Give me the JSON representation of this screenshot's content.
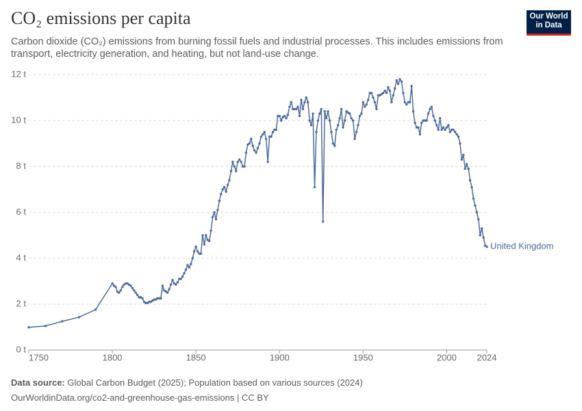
{
  "chart_data": {
    "type": "line",
    "title": "CO₂ emissions per capita",
    "subtitle": "Carbon dioxide (CO₂) emissions from burning fossil fuels and industrial processes. This includes emissions from transport, electricity generation, and heating, but not land-use change.",
    "logo": [
      "Our World",
      "in Data"
    ],
    "source_label": "Data source:",
    "source": "Global Carbon Budget (2025); Population based on various sources (2024)",
    "url_line": "OurWorldinData.org/co2-and-greenhouse-gas-emissions | CC BY",
    "xlim": [
      1750,
      2024
    ],
    "xticks": [
      1750,
      1800,
      1850,
      1900,
      1950,
      2000,
      2024
    ],
    "ylim": [
      0,
      12
    ],
    "yticks": [
      {
        "value": 0,
        "label": "0 t"
      },
      {
        "value": 2,
        "label": "2 t"
      },
      {
        "value": 4,
        "label": "4 t"
      },
      {
        "value": 6,
        "label": "6 t"
      },
      {
        "value": 8,
        "label": "8 t"
      },
      {
        "value": 10,
        "label": "10 t"
      },
      {
        "value": 12,
        "label": "12 t"
      }
    ],
    "grid": true,
    "x": [
      1750,
      1760,
      1770,
      1780,
      1790,
      1800,
      1801,
      1802,
      1803,
      1804,
      1805,
      1806,
      1807,
      1808,
      1809,
      1810,
      1811,
      1812,
      1813,
      1814,
      1815,
      1816,
      1817,
      1818,
      1819,
      1820,
      1821,
      1822,
      1823,
      1824,
      1825,
      1826,
      1827,
      1828,
      1829,
      1830,
      1831,
      1832,
      1833,
      1834,
      1835,
      1836,
      1837,
      1838,
      1839,
      1840,
      1841,
      1842,
      1843,
      1844,
      1845,
      1846,
      1847,
      1848,
      1849,
      1850,
      1851,
      1852,
      1853,
      1854,
      1855,
      1856,
      1857,
      1858,
      1859,
      1860,
      1861,
      1862,
      1863,
      1864,
      1865,
      1866,
      1867,
      1868,
      1869,
      1870,
      1871,
      1872,
      1873,
      1874,
      1875,
      1876,
      1877,
      1878,
      1879,
      1880,
      1881,
      1882,
      1883,
      1884,
      1885,
      1886,
      1887,
      1888,
      1889,
      1890,
      1891,
      1892,
      1893,
      1894,
      1895,
      1896,
      1897,
      1898,
      1899,
      1900,
      1901,
      1902,
      1903,
      1904,
      1905,
      1906,
      1907,
      1908,
      1909,
      1910,
      1911,
      1912,
      1913,
      1914,
      1915,
      1916,
      1917,
      1918,
      1919,
      1920,
      1921,
      1922,
      1923,
      1924,
      1925,
      1926,
      1927,
      1928,
      1929,
      1930,
      1931,
      1932,
      1933,
      1934,
      1935,
      1936,
      1937,
      1938,
      1939,
      1940,
      1941,
      1942,
      1943,
      1944,
      1945,
      1946,
      1947,
      1948,
      1949,
      1950,
      1951,
      1952,
      1953,
      1954,
      1955,
      1956,
      1957,
      1958,
      1959,
      1960,
      1961,
      1962,
      1963,
      1964,
      1965,
      1966,
      1967,
      1968,
      1969,
      1970,
      1971,
      1972,
      1973,
      1974,
      1975,
      1976,
      1977,
      1978,
      1979,
      1980,
      1981,
      1982,
      1983,
      1984,
      1985,
      1986,
      1987,
      1988,
      1989,
      1990,
      1991,
      1992,
      1993,
      1994,
      1995,
      1996,
      1997,
      1998,
      1999,
      2000,
      2001,
      2002,
      2003,
      2004,
      2005,
      2006,
      2007,
      2008,
      2009,
      2010,
      2011,
      2012,
      2013,
      2014,
      2015,
      2016,
      2017,
      2018,
      2019,
      2020,
      2021,
      2022,
      2023,
      2024
    ],
    "series": [
      {
        "name": "United Kingdom",
        "color": "#4c6a9c",
        "values": [
          0.99,
          1.05,
          1.25,
          1.43,
          1.76,
          2.9,
          2.8,
          2.75,
          2.55,
          2.5,
          2.6,
          2.75,
          2.85,
          2.9,
          2.9,
          2.85,
          2.8,
          2.7,
          2.6,
          2.5,
          2.4,
          2.3,
          2.3,
          2.25,
          2.1,
          2.05,
          2.05,
          2.1,
          2.1,
          2.15,
          2.2,
          2.2,
          2.25,
          2.25,
          2.25,
          2.8,
          2.6,
          2.55,
          2.5,
          2.65,
          2.85,
          3.05,
          2.9,
          2.85,
          2.95,
          3.1,
          3.1,
          3.2,
          3.35,
          3.5,
          3.7,
          3.6,
          3.75,
          4.0,
          4.3,
          4.5,
          4.3,
          4.2,
          4.2,
          5.0,
          4.6,
          5.0,
          4.8,
          4.75,
          5.2,
          5.8,
          6.0,
          5.7,
          6.1,
          6.5,
          6.8,
          7.0,
          7.1,
          6.9,
          7.2,
          7.4,
          7.8,
          8.2,
          8.0,
          7.8,
          8.2,
          8.3,
          8.2,
          8.0,
          8.0,
          8.6,
          8.95,
          9.0,
          9.2,
          8.9,
          8.7,
          8.6,
          8.8,
          9.0,
          9.3,
          9.4,
          9.5,
          9.2,
          8.2,
          9.3,
          9.3,
          9.5,
          9.6,
          9.6,
          10.2,
          10.2,
          10.0,
          10.15,
          10.2,
          10.1,
          10.25,
          10.6,
          10.8,
          10.5,
          10.5,
          10.5,
          10.6,
          10.2,
          10.9,
          10.5,
          10.8,
          11.0,
          10.8,
          10.0,
          9.8,
          10.3,
          7.1,
          9.5,
          10.0,
          10.3,
          10.5,
          5.6,
          10.4,
          10.1,
          10.4,
          10.0,
          9.5,
          9.0,
          8.9,
          9.6,
          9.8,
          10.1,
          10.5,
          9.7,
          10.0,
          10.4,
          10.35,
          10.3,
          10.1,
          10.0,
          9.2,
          9.5,
          9.8,
          10.2,
          10.3,
          10.8,
          10.6,
          10.7,
          10.9,
          11.2,
          11.2,
          11.0,
          10.8,
          10.5,
          11.1,
          11.1,
          11.15,
          11.2,
          11.3,
          11.2,
          11.45,
          11.3,
          10.8,
          11.1,
          11.4,
          11.75,
          11.6,
          11.8,
          11.7,
          11.2,
          10.8,
          10.7,
          10.8,
          10.8,
          11.5,
          10.4,
          9.9,
          9.7,
          9.7,
          9.4,
          9.9,
          10.0,
          10.0,
          10.0,
          10.3,
          10.5,
          10.6,
          10.2,
          10.0,
          9.8,
          9.6,
          10.1,
          9.6,
          9.7,
          9.6,
          9.7,
          9.8,
          9.5,
          9.6,
          9.6,
          9.5,
          9.4,
          9.3,
          9.0,
          8.3,
          8.5,
          7.9,
          8.1,
          7.9,
          7.4,
          7.1,
          6.6,
          6.3,
          6.0,
          5.7,
          5.0,
          5.3,
          4.9,
          4.55,
          4.5
        ]
      }
    ]
  }
}
